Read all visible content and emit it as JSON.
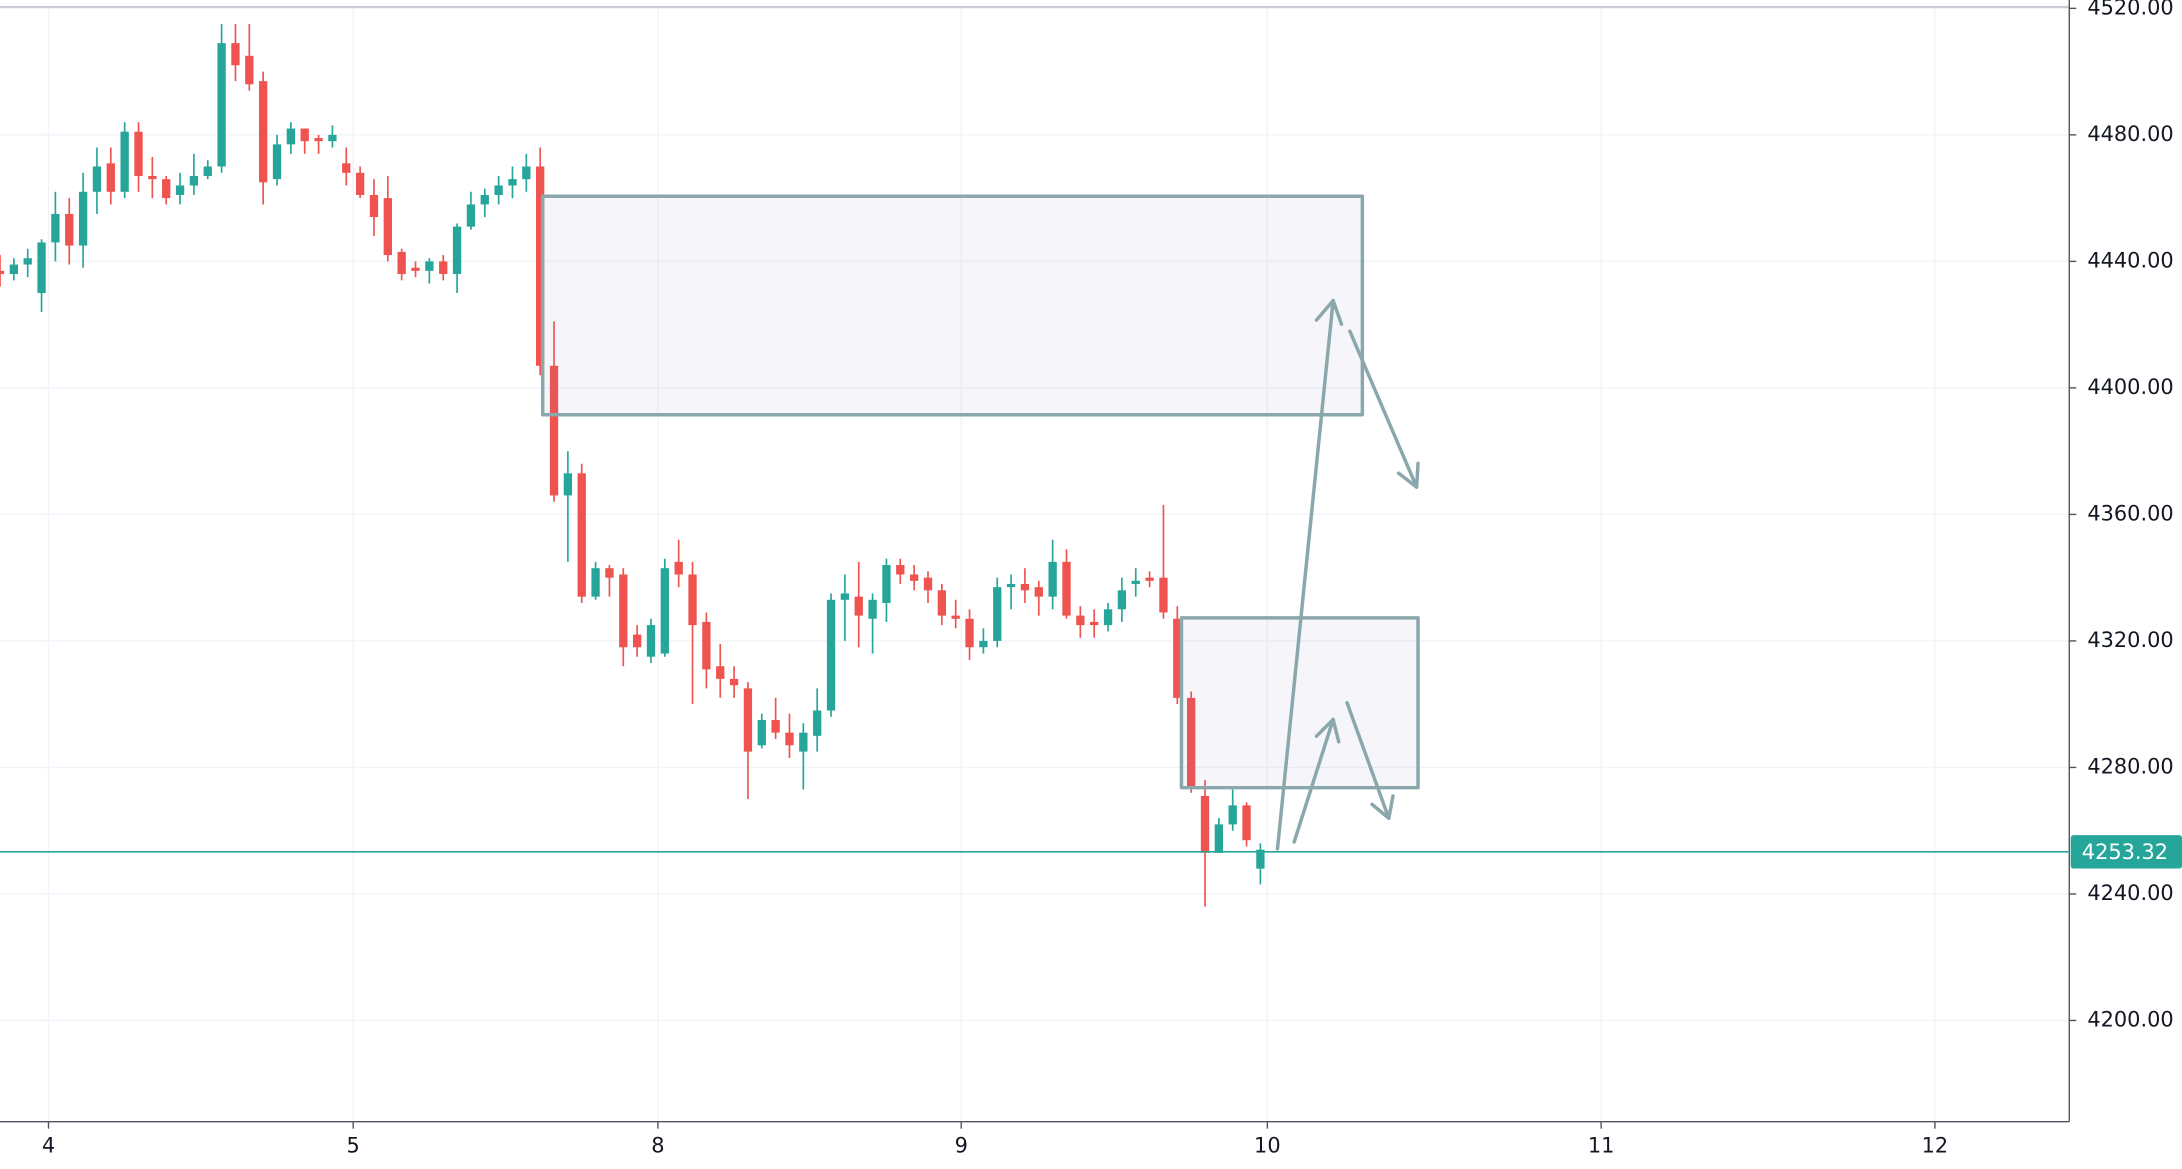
{
  "chart_data": {
    "type": "candlestick",
    "x": [
      0,
      1,
      2,
      3,
      4,
      5,
      6,
      7,
      8,
      9,
      10,
      11,
      12,
      13,
      14,
      15,
      16,
      17,
      18,
      19,
      20,
      21,
      22,
      23,
      24,
      25,
      26,
      27,
      28,
      29,
      30,
      31,
      32,
      33,
      34,
      35,
      36,
      37,
      38,
      39,
      40,
      41,
      42,
      43,
      44,
      45,
      46,
      47,
      48,
      49,
      50,
      51,
      52,
      53,
      54,
      55,
      56,
      57,
      58,
      59,
      60,
      61,
      62,
      63,
      64,
      65,
      66,
      67,
      68,
      69,
      70,
      71,
      72,
      73,
      74,
      75,
      76,
      77,
      78,
      79,
      80,
      81,
      82,
      83,
      84,
      85,
      86,
      87,
      88,
      89,
      90,
      91
    ],
    "open": [
      4437,
      4436,
      4439,
      4430,
      4446,
      4455,
      4445,
      4462,
      4471,
      4462,
      4481,
      4467,
      4466,
      4461,
      4464,
      4467,
      4470,
      4509,
      4505,
      4497,
      4466,
      4477,
      4482,
      4479,
      4478,
      4471,
      4468,
      4461,
      4460,
      4443,
      4438,
      4437,
      4440,
      4436,
      4451,
      4458,
      4461,
      4464,
      4466,
      4470,
      4407,
      4366,
      4373,
      4334,
      4343,
      4341,
      4322,
      4315,
      4316,
      4345,
      4341,
      4326,
      4312,
      4308,
      4305,
      4287,
      4295,
      4291,
      4285,
      4290,
      4298,
      4333,
      4334,
      4327,
      4332,
      4344,
      4341,
      4340,
      4336,
      4328,
      4327,
      4318,
      4320,
      4337,
      4338,
      4337,
      4334,
      4345,
      4328,
      4326,
      4325,
      4330,
      4338,
      4340,
      4340,
      4327,
      4302,
      4271,
      4253,
      4262,
      4268,
      4248
    ],
    "high": [
      4442,
      4441,
      4444,
      4447,
      4462,
      4460,
      4468,
      4476,
      4476,
      4484,
      4484,
      4473,
      4467,
      4468,
      4474,
      4472,
      4515,
      4515,
      4515,
      4500,
      4480,
      4484,
      4482,
      4480,
      4483,
      4476,
      4470,
      4466,
      4467,
      4444,
      4440,
      4441,
      4442,
      4452,
      4462,
      4463,
      4467,
      4470,
      4474,
      4476,
      4421,
      4380,
      4376,
      4345,
      4344,
      4343,
      4325,
      4327,
      4346,
      4352,
      4345,
      4329,
      4319,
      4312,
      4307,
      4297,
      4302,
      4297,
      4294,
      4305,
      4335,
      4341,
      4345,
      4335,
      4346,
      4346,
      4344,
      4342,
      4338,
      4333,
      4330,
      4324,
      4340,
      4341,
      4343,
      4339,
      4352,
      4349,
      4331,
      4330,
      4332,
      4340,
      4343,
      4342,
      4363,
      4331,
      4304,
      4276,
      4264,
      4273,
      4269,
      4256
    ],
    "low": [
      4432,
      4434,
      4435,
      4424,
      4440,
      4439,
      4438,
      4455,
      4458,
      4460,
      4462,
      4460,
      4458,
      4458,
      4461,
      4466,
      4468,
      4497,
      4494,
      4458,
      4464,
      4474,
      4474,
      4474,
      4476,
      4464,
      4460,
      4448,
      4440,
      4434,
      4435,
      4433,
      4434,
      4430,
      4450,
      4454,
      4458,
      4460,
      4462,
      4404,
      4364,
      4345,
      4332,
      4333,
      4334,
      4312,
      4315,
      4313,
      4315,
      4337,
      4300,
      4305,
      4302,
      4302,
      4270,
      4286,
      4289,
      4283,
      4273,
      4285,
      4296,
      4320,
      4318,
      4316,
      4326,
      4338,
      4336,
      4332,
      4325,
      4324,
      4314,
      4316,
      4318,
      4330,
      4332,
      4328,
      4330,
      4327,
      4321,
      4321,
      4323,
      4326,
      4334,
      4337,
      4327,
      4300,
      4272,
      4236,
      4253,
      4260,
      4255,
      4243
    ],
    "close": [
      4436,
      4439,
      4441,
      4446,
      4455,
      4445,
      4462,
      4470,
      4462,
      4481,
      4467,
      4466,
      4460,
      4464,
      4467,
      4470,
      4509,
      4502,
      4496,
      4465,
      4477,
      4482,
      4478,
      4478,
      4480,
      4468,
      4461,
      4454,
      4442,
      4436,
      4437,
      4440,
      4436,
      4451,
      4458,
      4461,
      4464,
      4466,
      4470,
      4407,
      4366,
      4373,
      4334,
      4343,
      4340,
      4318,
      4318,
      4325,
      4343,
      4341,
      4325,
      4311,
      4308,
      4306,
      4285,
      4295,
      4291,
      4287,
      4291,
      4298,
      4333,
      4335,
      4328,
      4333,
      4344,
      4341,
      4339,
      4336,
      4328,
      4327,
      4318,
      4320,
      4337,
      4338,
      4336,
      4334,
      4345,
      4328,
      4325,
      4325,
      4330,
      4336,
      4339,
      4339,
      4329,
      4302,
      4274,
      4253,
      4262,
      4268,
      4257,
      4254
    ],
    "up_color": "#26a69a",
    "down_color": "#ef5350",
    "xlim": [
      0,
      149.4
    ],
    "xticks": [
      {
        "value": 3.5,
        "label": "4"
      },
      {
        "value": 25.5,
        "label": "5"
      },
      {
        "value": 47.5,
        "label": "8"
      },
      {
        "value": 69.4,
        "label": "9"
      },
      {
        "value": 91.5,
        "label": "10"
      },
      {
        "value": 115.6,
        "label": "11"
      },
      {
        "value": 139.7,
        "label": "12"
      }
    ],
    "ylim": [
      4168,
      4520
    ],
    "yticks": [
      {
        "value": 4200,
        "label": "4200.00"
      },
      {
        "value": 4240,
        "label": "4240.00"
      },
      {
        "value": 4280,
        "label": "4280.00"
      },
      {
        "value": 4320,
        "label": "4320.00"
      },
      {
        "value": 4360,
        "label": "4360.00"
      },
      {
        "value": 4400,
        "label": "4400.00"
      },
      {
        "value": 4440,
        "label": "4440.00"
      },
      {
        "value": 4480,
        "label": "4480.00"
      },
      {
        "value": 4520,
        "label": "4520.00"
      }
    ],
    "grid": true,
    "last_price": 4253.32,
    "last_price_color": "#26a69a"
  }
}
